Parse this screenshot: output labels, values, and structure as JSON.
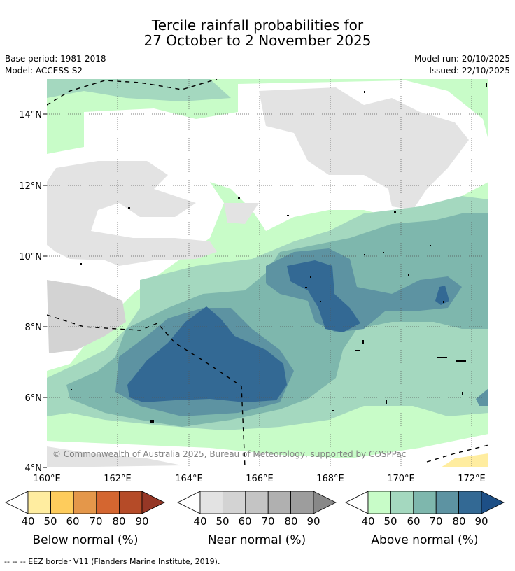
{
  "title": {
    "line1": "Tercile rainfall probabilities for",
    "line2": "27 October to 2 November 2025"
  },
  "meta": {
    "base_period": "Base period: 1981-2018",
    "model": "Model: ACCESS-S2",
    "model_run": "Model run: 20/10/2025",
    "issued": "Issued: 22/10/2025"
  },
  "map": {
    "copyright": "© Commonwealth of Australia 2025, Bureau of Meteorology, supported by COSPPac",
    "lat_labels": [
      "14°N",
      "12°N",
      "10°N",
      "8°N",
      "6°N",
      "4°N"
    ],
    "lon_labels": [
      "160°E",
      "162°E",
      "164°E",
      "166°E",
      "168°E",
      "170°E",
      "172°E"
    ]
  },
  "colorbars": {
    "below": {
      "label": "Below normal (%)",
      "ticks": [
        "40",
        "50",
        "60",
        "70",
        "80",
        "90"
      ],
      "colors": [
        "#ffeda0",
        "#fecc5c",
        "#e4974a",
        "#d46630",
        "#b54b28",
        "#963726"
      ]
    },
    "near": {
      "label": "Near normal (%)",
      "ticks": [
        "40",
        "50",
        "60",
        "70",
        "80",
        "90"
      ],
      "colors": [
        "#e3e3e3",
        "#d3d3d3",
        "#c4c4c4",
        "#b0b0b0",
        "#9d9d9d",
        "#888888"
      ]
    },
    "above": {
      "label": "Above normal (%)",
      "ticks": [
        "40",
        "50",
        "60",
        "70",
        "80",
        "90"
      ],
      "colors": [
        "#c8fcc8",
        "#a4d8bf",
        "#7eb7ad",
        "#5d93a2",
        "#336994",
        "#1d4f86"
      ]
    }
  },
  "legend": {
    "eez": "--  --  -- EEZ border V11 (Flanders Marine Institute, 2019)."
  }
}
